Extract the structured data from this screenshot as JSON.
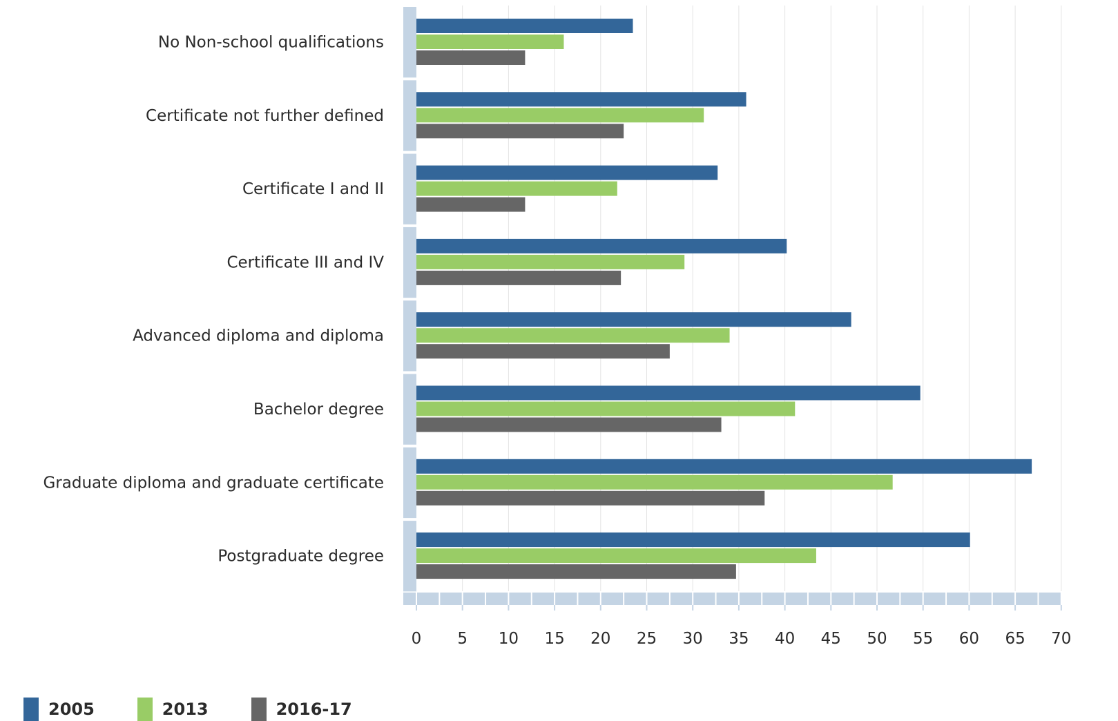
{
  "chart_data": {
    "type": "bar",
    "orientation": "horizontal",
    "categories": [
      "No Non-school qualifications",
      "Certificate not further defined",
      "Certificate I and II",
      "Certificate III and IV",
      "Advanced diploma and diploma",
      "Bachelor degree",
      "Graduate diploma and graduate certificate",
      "Postgraduate degree"
    ],
    "series": [
      {
        "name": "2005",
        "color": "#336699",
        "values": [
          23.5,
          35.8,
          32.7,
          40.2,
          47.2,
          54.7,
          66.8,
          60.1
        ]
      },
      {
        "name": "2013",
        "color": "#99cc66",
        "values": [
          16.0,
          31.2,
          21.8,
          29.1,
          34.0,
          41.1,
          51.7,
          43.4
        ]
      },
      {
        "name": "2016-17",
        "color": "#666666",
        "values": [
          11.8,
          22.5,
          11.8,
          22.2,
          27.5,
          33.1,
          37.8,
          34.7
        ]
      }
    ],
    "xlim": [
      0,
      70
    ],
    "xticks": [
      "0",
      "5",
      "10",
      "15",
      "20",
      "25",
      "30",
      "35",
      "40",
      "45",
      "50",
      "55",
      "60",
      "65",
      "70"
    ],
    "grid": true,
    "legend_position": "bottom-left",
    "title": "",
    "xlabel": "",
    "ylabel": ""
  }
}
